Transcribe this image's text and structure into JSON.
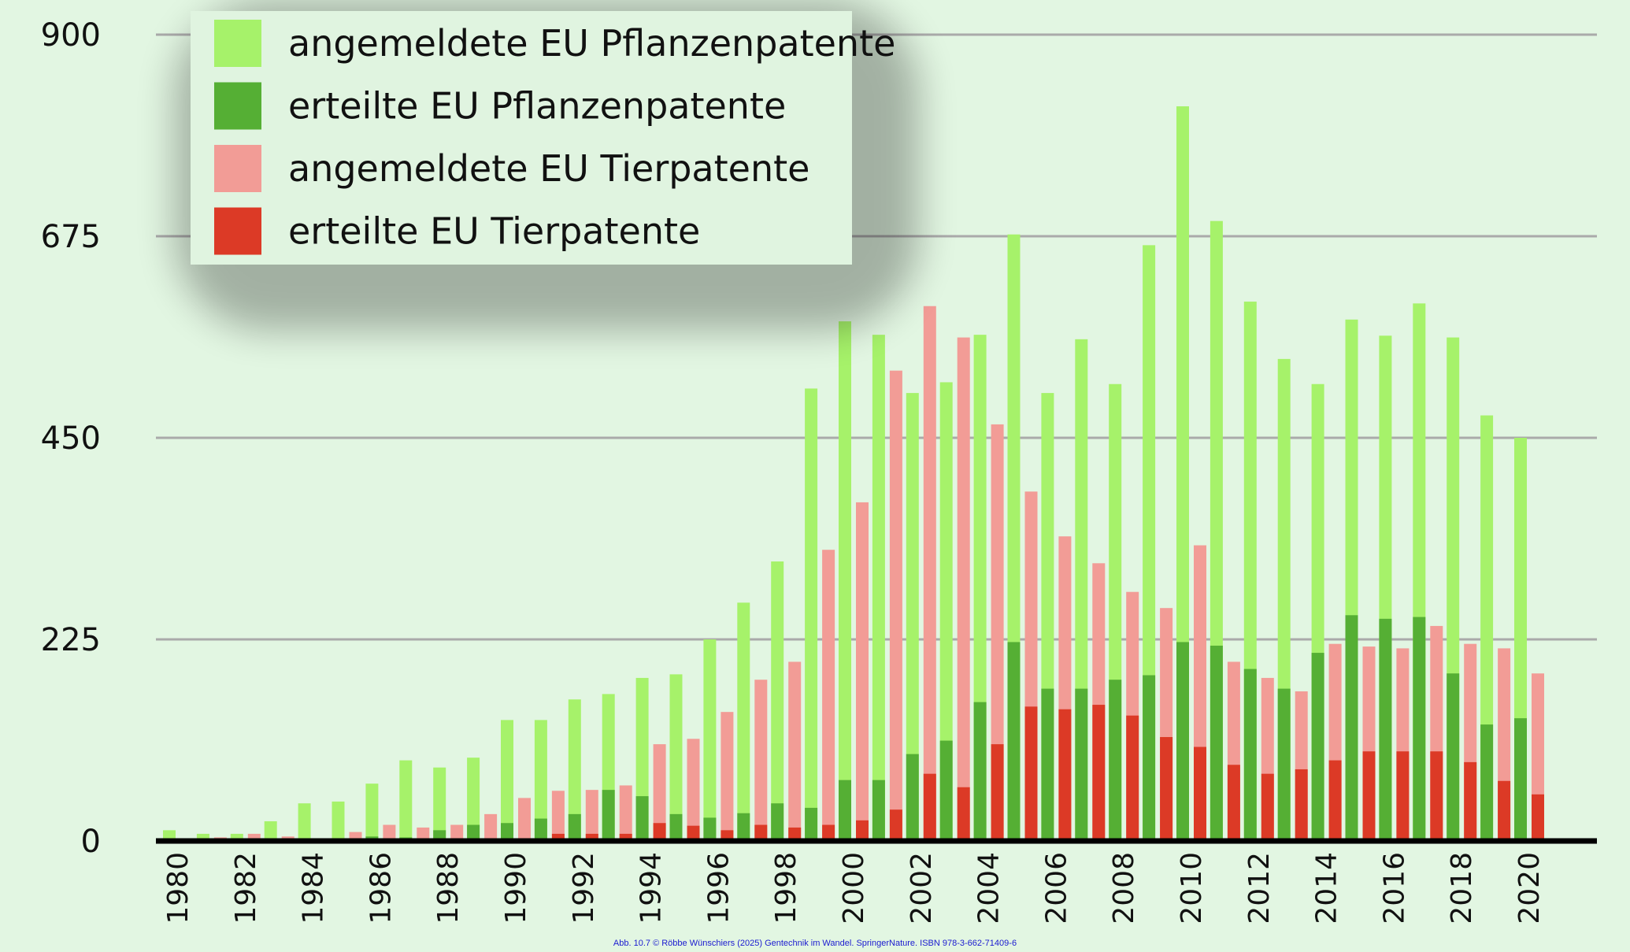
{
  "colors": {
    "background": "#e2f6e2",
    "plant_applied": "#a6f26a",
    "plant_granted": "#55af34",
    "animal_applied": "#f29c96",
    "animal_granted": "#dc3a26",
    "grid": "#aaaaaa",
    "legend_bg": "#e0f4e0"
  },
  "credit": "Abb. 10.7 © Röbbe Wünschiers (2025) Gentechnik im Wandel. SpringerNature. ISBN 978-3-662-71409-6",
  "chart_data": {
    "type": "bar",
    "title": "",
    "xlabel": "",
    "ylabel": "",
    "ylim": [
      0,
      900
    ],
    "yticks": [
      "0",
      "225",
      "450",
      "675",
      "900"
    ],
    "grid": "horizontal",
    "legend_position": "top-left",
    "x": [
      1980,
      1981,
      1982,
      1983,
      1984,
      1985,
      1986,
      1987,
      1988,
      1989,
      1990,
      1991,
      1992,
      1993,
      1994,
      1995,
      1996,
      1997,
      1998,
      1999,
      2000,
      2001,
      2002,
      2003,
      2004,
      2005,
      2006,
      2007,
      2008,
      2009,
      2010,
      2011,
      2012,
      2013,
      2014,
      2015,
      2016,
      2017,
      2018,
      2019,
      2020,
      2021
    ],
    "xtick_labels": [
      "1980",
      "1982",
      "1984",
      "1986",
      "1988",
      "1990",
      "1992",
      "1994",
      "1996",
      "1998",
      "2000",
      "2002",
      "2004",
      "2006",
      "2008",
      "2010",
      "2012",
      "2014",
      "2016",
      "2018",
      "2020"
    ],
    "series": [
      {
        "name": "angemeldete EU Pflanzenpatente",
        "color_key": "plant_applied",
        "values": [
          12,
          8,
          8,
          22,
          42,
          44,
          64,
          90,
          82,
          93,
          135,
          135,
          158,
          164,
          182,
          186,
          225,
          266,
          312,
          505,
          580,
          565,
          500,
          512,
          565,
          677,
          500,
          560,
          510,
          665,
          820,
          692,
          602,
          538,
          510,
          582,
          564,
          600,
          562,
          475,
          450,
          0
        ]
      },
      {
        "name": "erteilte EU Pflanzenpatente",
        "color_key": "plant_granted",
        "values": [
          0,
          0,
          0,
          0,
          0,
          0,
          5,
          4,
          12,
          18,
          20,
          25,
          30,
          57,
          50,
          30,
          26,
          31,
          42,
          37,
          68,
          68,
          97,
          112,
          155,
          222,
          170,
          170,
          180,
          185,
          222,
          218,
          192,
          170,
          210,
          252,
          248,
          250,
          187,
          130,
          137,
          0
        ]
      },
      {
        "name": "angemeldete EU Tierpatente",
        "color_key": "animal_applied",
        "values": [
          2,
          4,
          8,
          5,
          3,
          10,
          18,
          15,
          18,
          30,
          48,
          56,
          57,
          62,
          108,
          114,
          144,
          180,
          200,
          325,
          378,
          525,
          597,
          562,
          465,
          390,
          340,
          310,
          278,
          260,
          330,
          200,
          182,
          167,
          220,
          217,
          215,
          240,
          220,
          215,
          187,
          0
        ]
      },
      {
        "name": "erteilte EU Tierpatente",
        "color_key": "animal_granted",
        "values": [
          0,
          0,
          0,
          0,
          0,
          0,
          0,
          0,
          0,
          0,
          0,
          8,
          8,
          8,
          20,
          17,
          12,
          18,
          15,
          18,
          23,
          35,
          75,
          60,
          108,
          150,
          147,
          152,
          140,
          116,
          105,
          85,
          75,
          80,
          90,
          100,
          100,
          100,
          88,
          67,
          52,
          0
        ]
      }
    ]
  }
}
